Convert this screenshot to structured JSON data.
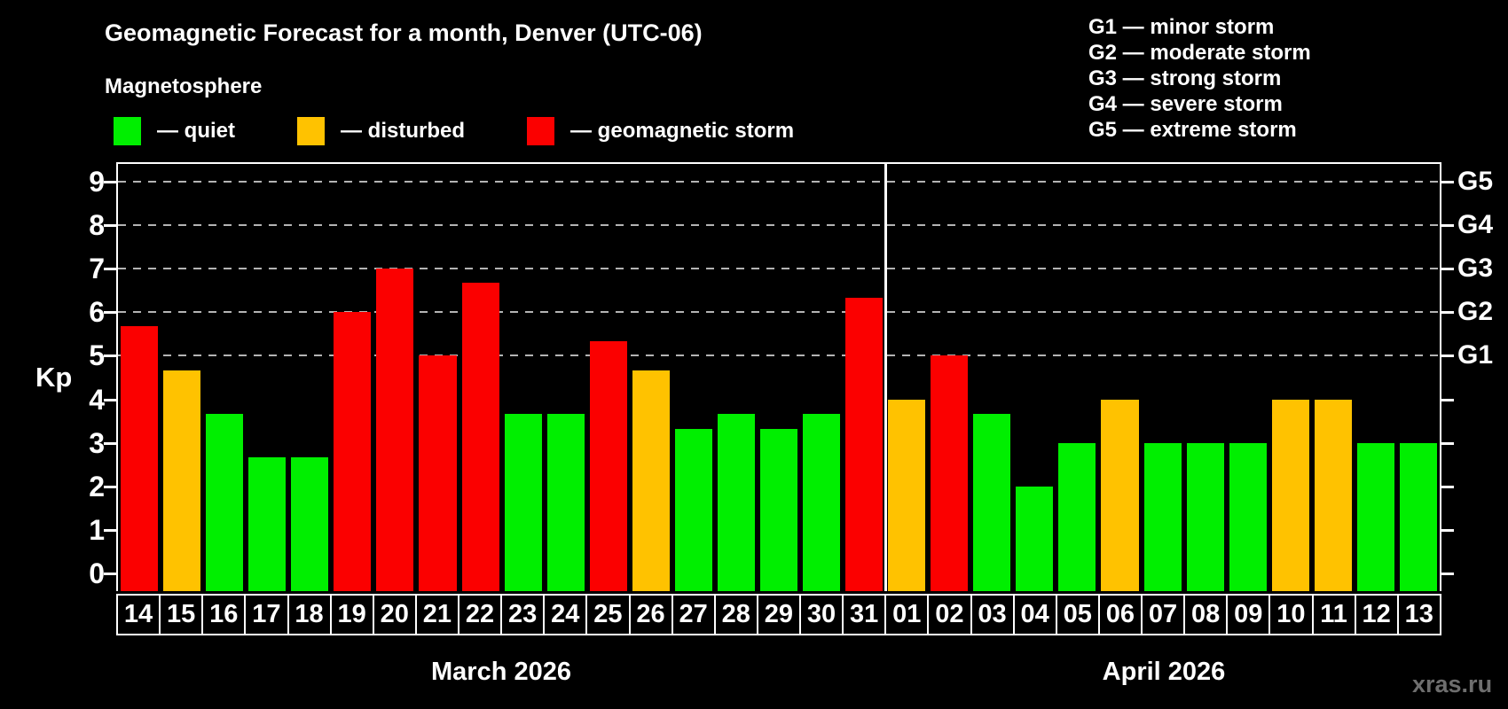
{
  "title": "Geomagnetic Forecast for a month, Denver (UTC-06)",
  "subtitle": "Magnetosphere",
  "legend": [
    {
      "key": "quiet",
      "label": "— quiet",
      "color": "#00ef00"
    },
    {
      "key": "disturbed",
      "label": "— disturbed",
      "color": "#ffc200"
    },
    {
      "key": "storm",
      "label": "— geomagnetic storm",
      "color": "#fb0000"
    }
  ],
  "g_legend": [
    "G1 — minor storm",
    "G2 — moderate storm",
    "G3 — strong storm",
    "G4 — severe storm",
    "G5 — extreme storm"
  ],
  "watermark": "xras.ru",
  "months": [
    {
      "label": "March 2026",
      "days": 18
    },
    {
      "label": "April 2026",
      "days": 13
    }
  ],
  "chart_data": {
    "type": "bar",
    "title": "Geomagnetic Forecast for a month, Denver (UTC-06)",
    "ylabel": "Kp",
    "ylim": [
      -0.4,
      9.4
    ],
    "y_ticks": [
      0,
      1,
      2,
      3,
      4,
      5,
      6,
      7,
      8,
      9
    ],
    "grid_levels": [
      5,
      6,
      7,
      8,
      9
    ],
    "right_axis_labels": [
      {
        "kp": 5,
        "label": "G1"
      },
      {
        "kp": 6,
        "label": "G2"
      },
      {
        "kp": 7,
        "label": "G3"
      },
      {
        "kp": 8,
        "label": "G4"
      },
      {
        "kp": 9,
        "label": "G5"
      }
    ],
    "level_colors": {
      "quiet": "#00ef00",
      "disturbed": "#ffc200",
      "storm": "#fb0000"
    },
    "bars": [
      {
        "day": "14",
        "kp": 5.67,
        "level": "storm"
      },
      {
        "day": "15",
        "kp": 4.67,
        "level": "disturbed"
      },
      {
        "day": "16",
        "kp": 3.67,
        "level": "quiet"
      },
      {
        "day": "17",
        "kp": 2.67,
        "level": "quiet"
      },
      {
        "day": "18",
        "kp": 2.67,
        "level": "quiet"
      },
      {
        "day": "19",
        "kp": 6,
        "level": "storm"
      },
      {
        "day": "20",
        "kp": 7,
        "level": "storm"
      },
      {
        "day": "21",
        "kp": 5,
        "level": "storm"
      },
      {
        "day": "22",
        "kp": 6.67,
        "level": "storm"
      },
      {
        "day": "23",
        "kp": 3.67,
        "level": "quiet"
      },
      {
        "day": "24",
        "kp": 3.67,
        "level": "quiet"
      },
      {
        "day": "25",
        "kp": 5.33,
        "level": "storm"
      },
      {
        "day": "26",
        "kp": 4.67,
        "level": "disturbed"
      },
      {
        "day": "27",
        "kp": 3.33,
        "level": "quiet"
      },
      {
        "day": "28",
        "kp": 3.67,
        "level": "quiet"
      },
      {
        "day": "29",
        "kp": 3.33,
        "level": "quiet"
      },
      {
        "day": "30",
        "kp": 3.67,
        "level": "quiet"
      },
      {
        "day": "31",
        "kp": 6.33,
        "level": "storm"
      },
      {
        "day": "01",
        "kp": 4,
        "level": "disturbed"
      },
      {
        "day": "02",
        "kp": 5,
        "level": "storm"
      },
      {
        "day": "03",
        "kp": 3.67,
        "level": "quiet"
      },
      {
        "day": "04",
        "kp": 2,
        "level": "quiet"
      },
      {
        "day": "05",
        "kp": 3,
        "level": "quiet"
      },
      {
        "day": "06",
        "kp": 4,
        "level": "disturbed"
      },
      {
        "day": "07",
        "kp": 3,
        "level": "quiet"
      },
      {
        "day": "08",
        "kp": 3,
        "level": "quiet"
      },
      {
        "day": "09",
        "kp": 3,
        "level": "quiet"
      },
      {
        "day": "10",
        "kp": 4,
        "level": "disturbed"
      },
      {
        "day": "11",
        "kp": 4,
        "level": "disturbed"
      },
      {
        "day": "12",
        "kp": 3,
        "level": "quiet"
      },
      {
        "day": "13",
        "kp": 3,
        "level": "quiet"
      }
    ]
  }
}
